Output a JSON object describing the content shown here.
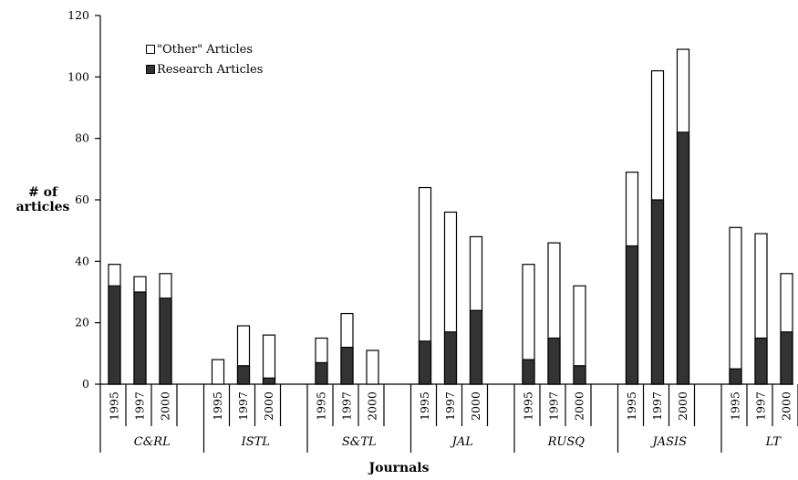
{
  "chart_data": {
    "type": "bar",
    "stacked": true,
    "xlabel": "Journals",
    "ylabel_lines": [
      "# of",
      "articles"
    ],
    "ylim": [
      0,
      120
    ],
    "yticks": [
      0,
      20,
      40,
      60,
      80,
      100,
      120
    ],
    "groups": [
      {
        "name": "C&RL",
        "years": [
          "1995",
          "1997",
          "2000"
        ],
        "research": [
          32,
          30,
          28
        ],
        "total": [
          39,
          35,
          36
        ]
      },
      {
        "name": "ISTL",
        "years": [
          "1995",
          "1997",
          "2000"
        ],
        "research": [
          0,
          6,
          2
        ],
        "total": [
          8,
          19,
          16
        ]
      },
      {
        "name": "S&TL",
        "years": [
          "1995",
          "1997",
          "2000"
        ],
        "research": [
          7,
          12,
          0
        ],
        "total": [
          15,
          23,
          11
        ]
      },
      {
        "name": "JAL",
        "years": [
          "1995",
          "1997",
          "2000"
        ],
        "research": [
          14,
          17,
          24
        ],
        "total": [
          64,
          56,
          48
        ]
      },
      {
        "name": "RUSQ",
        "years": [
          "1995",
          "1997",
          "2000"
        ],
        "research": [
          8,
          15,
          6
        ],
        "total": [
          39,
          46,
          32
        ]
      },
      {
        "name": "JASIS",
        "years": [
          "1995",
          "1997",
          "2000"
        ],
        "research": [
          45,
          60,
          82
        ],
        "total": [
          69,
          102,
          109
        ]
      },
      {
        "name": "LT",
        "years": [
          "1995",
          "1997",
          "2000"
        ],
        "research": [
          5,
          15,
          17
        ],
        "total": [
          51,
          49,
          36
        ]
      }
    ],
    "series": [
      {
        "name": "\"Other\" Articles",
        "color": "#ffffff"
      },
      {
        "name": "Research Articles",
        "color": "#333333"
      }
    ],
    "legend_position": "top-left",
    "grid": false
  }
}
